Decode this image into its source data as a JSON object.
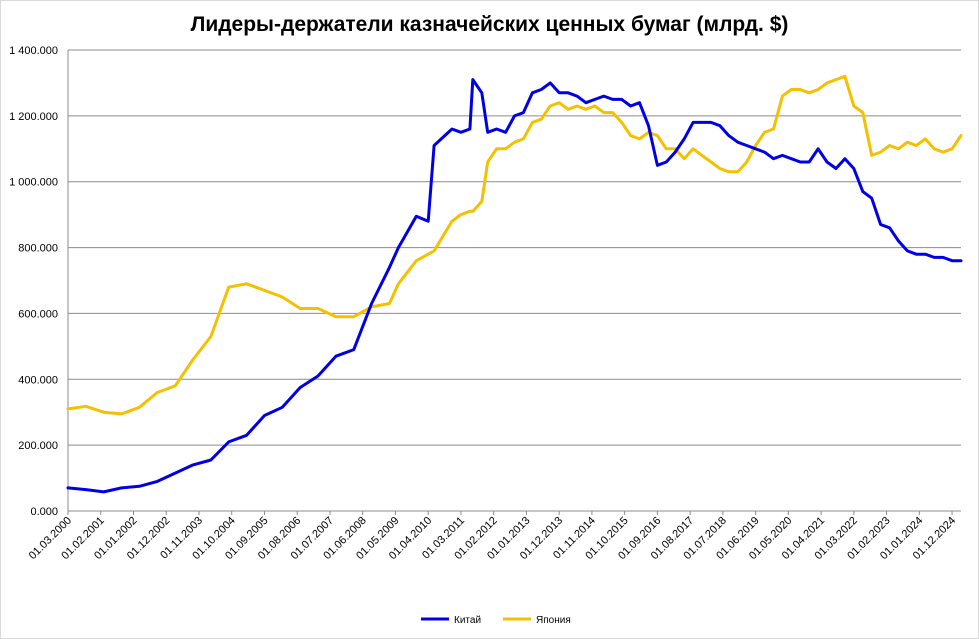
{
  "chart_data": {
    "type": "line",
    "title": "Лидеры-держатели казначейских ценных бумаг (млрд. $)",
    "xlabel": "",
    "ylabel": "",
    "ylim": [
      0,
      1400000
    ],
    "y_ticks": [
      "0.000",
      "200.000",
      "400.000",
      "600.000",
      "800.000",
      "1 000.000",
      "1 200.000",
      "1 400.000"
    ],
    "x_ticks": [
      "01.03.2000",
      "01.02.2001",
      "01.01.2002",
      "01.12.2002",
      "01.11.2003",
      "01.10.2004",
      "01.09.2005",
      "01.08.2006",
      "01.07.2007",
      "01.06.2008",
      "01.05.2009",
      "01.04.2010",
      "01.03.2011",
      "01.02.2012",
      "01.01.2013",
      "01.12.2013",
      "01.11.2014",
      "01.10.2015",
      "01.09.2016",
      "01.08.2017",
      "01.07.2018",
      "01.06.2019",
      "01.05.2020",
      "01.04.2021",
      "01.03.2022",
      "01.02.2023",
      "01.01.2024",
      "01.12.2024"
    ],
    "grid": true,
    "legend_position": "bottom",
    "series": [
      {
        "name": "Китай",
        "color": "#0000e6",
        "x": [
          "2000-03",
          "2000-09",
          "2001-03",
          "2001-09",
          "2002-03",
          "2002-09",
          "2003-03",
          "2003-09",
          "2004-03",
          "2004-09",
          "2005-03",
          "2005-09",
          "2006-03",
          "2006-09",
          "2007-03",
          "2007-09",
          "2008-03",
          "2008-09",
          "2009-03",
          "2009-06",
          "2009-12",
          "2010-04",
          "2010-06",
          "2010-12",
          "2011-03",
          "2011-06",
          "2011-07",
          "2011-10",
          "2011-12",
          "2012-03",
          "2012-06",
          "2012-09",
          "2012-12",
          "2013-03",
          "2013-06",
          "2013-09",
          "2013-12",
          "2014-03",
          "2014-06",
          "2014-09",
          "2014-12",
          "2015-03",
          "2015-06",
          "2015-09",
          "2015-12",
          "2016-03",
          "2016-06",
          "2016-09",
          "2016-12",
          "2017-03",
          "2017-06",
          "2017-09",
          "2017-12",
          "2018-03",
          "2018-06",
          "2018-09",
          "2018-12",
          "2019-03",
          "2019-06",
          "2019-09",
          "2019-12",
          "2020-03",
          "2020-06",
          "2020-09",
          "2020-12",
          "2021-03",
          "2021-06",
          "2021-09",
          "2021-12",
          "2022-03",
          "2022-06",
          "2022-09",
          "2022-12",
          "2023-03",
          "2023-06",
          "2023-09",
          "2023-12",
          "2024-03",
          "2024-06",
          "2024-09",
          "2024-12",
          "2025-03"
        ],
        "values": [
          70000,
          65000,
          58000,
          70000,
          75000,
          90000,
          115000,
          140000,
          155000,
          210000,
          230000,
          290000,
          315000,
          375000,
          410000,
          470000,
          490000,
          630000,
          740000,
          800000,
          895000,
          880000,
          1110000,
          1160000,
          1150000,
          1160000,
          1310000,
          1270000,
          1150000,
          1160000,
          1150000,
          1200000,
          1210000,
          1270000,
          1280000,
          1300000,
          1270000,
          1270000,
          1260000,
          1240000,
          1250000,
          1260000,
          1250000,
          1250000,
          1230000,
          1240000,
          1170000,
          1050000,
          1060000,
          1090000,
          1130000,
          1180000,
          1180000,
          1180000,
          1170000,
          1140000,
          1120000,
          1110000,
          1100000,
          1090000,
          1070000,
          1080000,
          1070000,
          1060000,
          1060000,
          1100000,
          1060000,
          1040000,
          1070000,
          1040000,
          970000,
          950000,
          870000,
          860000,
          820000,
          790000,
          780000,
          780000,
          770000,
          770000,
          760000,
          760000
        ]
      },
      {
        "name": "Япония",
        "color": "#f5c000",
        "x": [
          "2000-03",
          "2000-09",
          "2001-03",
          "2001-09",
          "2002-03",
          "2002-09",
          "2003-03",
          "2003-09",
          "2004-03",
          "2004-09",
          "2005-03",
          "2005-09",
          "2006-03",
          "2006-09",
          "2007-03",
          "2007-09",
          "2008-03",
          "2008-09",
          "2009-03",
          "2009-06",
          "2009-12",
          "2010-04",
          "2010-06",
          "2010-12",
          "2011-03",
          "2011-06",
          "2011-07",
          "2011-10",
          "2011-12",
          "2012-03",
          "2012-06",
          "2012-09",
          "2012-12",
          "2013-03",
          "2013-06",
          "2013-09",
          "2013-12",
          "2014-03",
          "2014-06",
          "2014-09",
          "2014-12",
          "2015-03",
          "2015-06",
          "2015-09",
          "2015-12",
          "2016-03",
          "2016-06",
          "2016-09",
          "2016-12",
          "2017-03",
          "2017-06",
          "2017-09",
          "2017-12",
          "2018-03",
          "2018-06",
          "2018-09",
          "2018-12",
          "2019-03",
          "2019-06",
          "2019-09",
          "2019-12",
          "2020-03",
          "2020-06",
          "2020-09",
          "2020-12",
          "2021-03",
          "2021-06",
          "2021-09",
          "2021-12",
          "2022-03",
          "2022-06",
          "2022-09",
          "2022-12",
          "2023-03",
          "2023-06",
          "2023-09",
          "2023-12",
          "2024-03",
          "2024-06",
          "2024-09",
          "2024-12",
          "2025-03"
        ],
        "values": [
          310000,
          318000,
          300000,
          295000,
          315000,
          360000,
          380000,
          460000,
          530000,
          680000,
          690000,
          670000,
          650000,
          615000,
          615000,
          590000,
          590000,
          620000,
          630000,
          690000,
          760000,
          780000,
          790000,
          880000,
          900000,
          910000,
          910000,
          940000,
          1060000,
          1100000,
          1100000,
          1120000,
          1130000,
          1180000,
          1190000,
          1230000,
          1240000,
          1220000,
          1230000,
          1220000,
          1230000,
          1210000,
          1210000,
          1180000,
          1140000,
          1130000,
          1150000,
          1140000,
          1100000,
          1100000,
          1070000,
          1100000,
          1080000,
          1060000,
          1040000,
          1030000,
          1030000,
          1060000,
          1110000,
          1150000,
          1160000,
          1260000,
          1280000,
          1280000,
          1270000,
          1280000,
          1300000,
          1310000,
          1320000,
          1230000,
          1210000,
          1080000,
          1090000,
          1110000,
          1100000,
          1120000,
          1110000,
          1130000,
          1100000,
          1090000,
          1100000,
          1140000
        ]
      }
    ]
  }
}
